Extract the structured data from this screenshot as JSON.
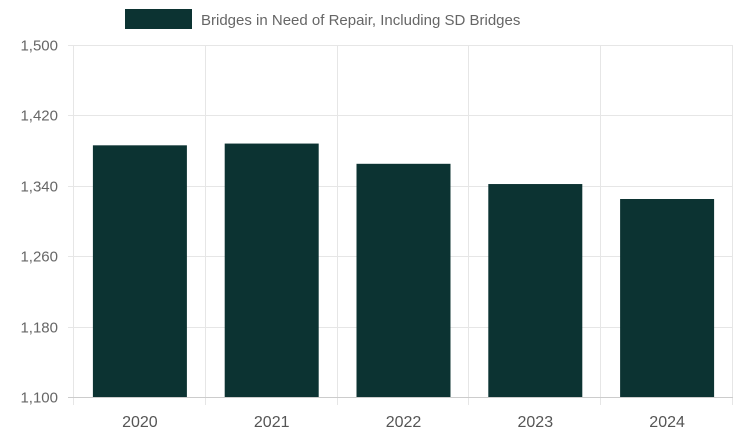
{
  "chart_data": {
    "type": "bar",
    "categories": [
      "2020",
      "2021",
      "2022",
      "2023",
      "2024"
    ],
    "series": [
      {
        "name": "Bridges in Need of Repair, Including SD Bridges",
        "values": [
          1386,
          1388,
          1365,
          1342,
          1325
        ],
        "color": "#0c3332"
      }
    ],
    "ylim": [
      1100,
      1500
    ],
    "yticks": [
      "1,100",
      "1,180",
      "1,260",
      "1,340",
      "1,420",
      "1,500"
    ],
    "ytick_values": [
      1100,
      1180,
      1260,
      1340,
      1420,
      1500
    ],
    "grid": true,
    "legend_position": "top-center",
    "xlabel": "",
    "ylabel": ""
  }
}
